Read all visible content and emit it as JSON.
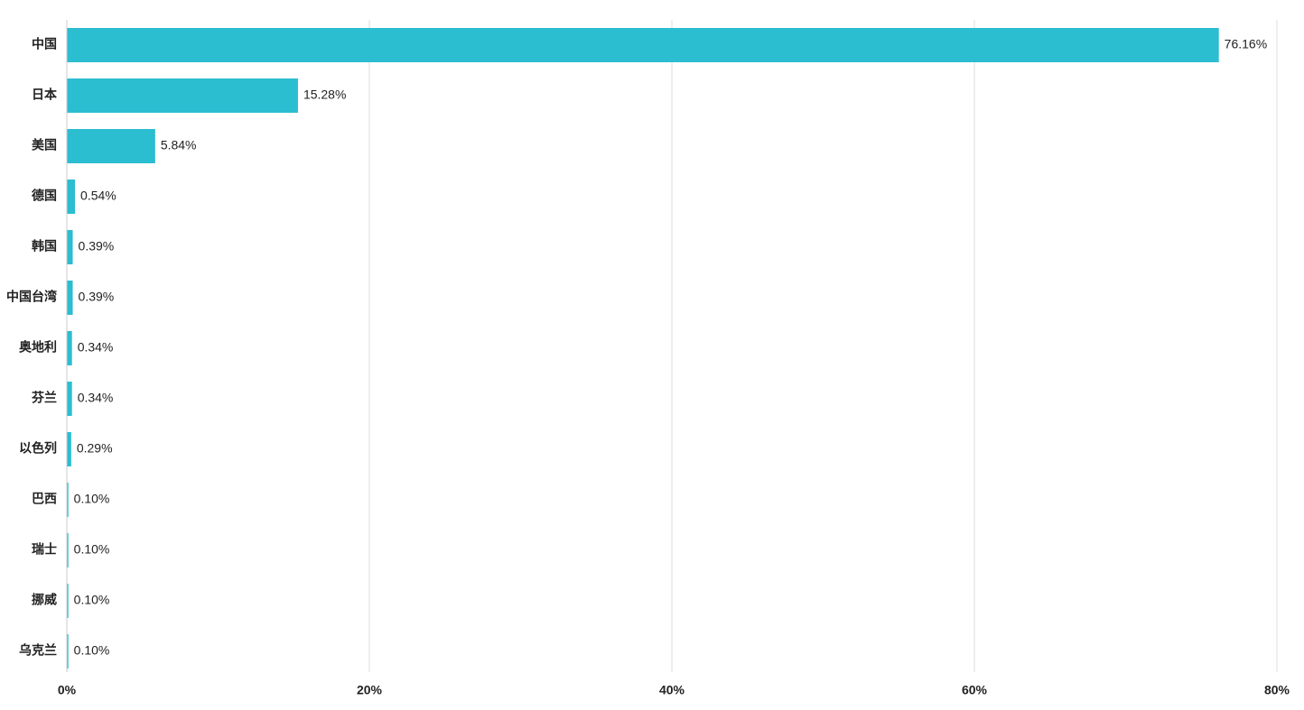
{
  "chart_data": {
    "type": "hbar",
    "categories": [
      "中国",
      "日本",
      "美国",
      "德国",
      "韩国",
      "中国台湾",
      "奥地利",
      "芬兰",
      "以色列",
      "巴西",
      "瑞士",
      "挪威",
      "乌克兰"
    ],
    "values": [
      76.16,
      15.28,
      5.84,
      0.54,
      0.39,
      0.39,
      0.34,
      0.34,
      0.29,
      0.1,
      0.1,
      0.1,
      0.1
    ],
    "value_labels": [
      "76.16%",
      "15.28%",
      "5.84%",
      "0.54%",
      "0.39%",
      "0.39%",
      "0.34%",
      "0.34%",
      "0.29%",
      "0.10%",
      "0.10%",
      "0.10%",
      "0.10%"
    ],
    "color": "#2bbdd0",
    "xlim": [
      0,
      80
    ],
    "xticks": [
      {
        "value": 0,
        "label": "0%"
      },
      {
        "value": 20,
        "label": "20%"
      },
      {
        "value": 40,
        "label": "40%"
      },
      {
        "value": 60,
        "label": "60%"
      },
      {
        "value": 80,
        "label": "80%"
      }
    ],
    "grid": true
  }
}
